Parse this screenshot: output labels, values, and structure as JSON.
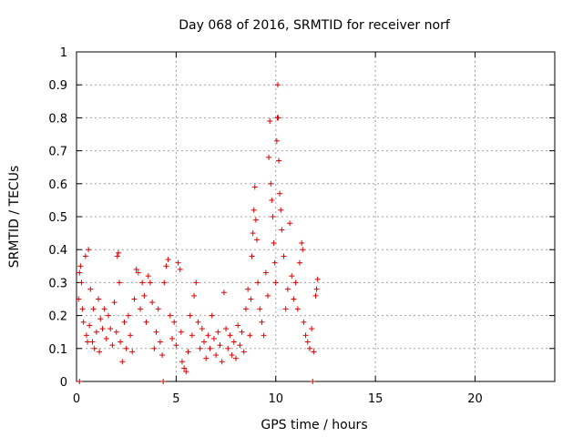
{
  "chart_data": {
    "type": "scatter",
    "title": "Day 068 of 2016, SRMTID for receiver norf",
    "xlabel": "GPS time / hours",
    "ylabel": "SRMTID / TECUs",
    "xlim": [
      0,
      24
    ],
    "ylim": [
      0,
      1
    ],
    "xticks": [
      "0",
      "5",
      "10",
      "15",
      "20"
    ],
    "yticks": [
      "0",
      "0.1",
      "0.2",
      "0.3",
      "0.4",
      "0.5",
      "0.6",
      "0.7",
      "0.8",
      "0.9",
      "1"
    ],
    "grid": true,
    "marker_color": "#e00000",
    "series": [
      {
        "name": "SRMTID",
        "points": [
          [
            0.15,
            0.0
          ],
          [
            0.1,
            0.25
          ],
          [
            0.15,
            0.33
          ],
          [
            0.2,
            0.35
          ],
          [
            0.25,
            0.3
          ],
          [
            0.3,
            0.22
          ],
          [
            0.35,
            0.18
          ],
          [
            0.45,
            0.38
          ],
          [
            0.5,
            0.14
          ],
          [
            0.55,
            0.12
          ],
          [
            0.6,
            0.4
          ],
          [
            0.65,
            0.17
          ],
          [
            0.7,
            0.28
          ],
          [
            0.8,
            0.12
          ],
          [
            0.85,
            0.22
          ],
          [
            0.9,
            0.1
          ],
          [
            1.0,
            0.15
          ],
          [
            1.1,
            0.25
          ],
          [
            1.15,
            0.09
          ],
          [
            1.2,
            0.19
          ],
          [
            1.3,
            0.16
          ],
          [
            1.4,
            0.22
          ],
          [
            1.5,
            0.13
          ],
          [
            1.6,
            0.2
          ],
          [
            1.7,
            0.16
          ],
          [
            1.8,
            0.11
          ],
          [
            1.9,
            0.24
          ],
          [
            2.0,
            0.15
          ],
          [
            2.05,
            0.38
          ],
          [
            2.1,
            0.39
          ],
          [
            2.15,
            0.3
          ],
          [
            2.2,
            0.12
          ],
          [
            2.3,
            0.06
          ],
          [
            2.4,
            0.18
          ],
          [
            2.5,
            0.1
          ],
          [
            2.6,
            0.2
          ],
          [
            2.7,
            0.14
          ],
          [
            2.8,
            0.09
          ],
          [
            2.9,
            0.25
          ],
          [
            3.0,
            0.34
          ],
          [
            3.1,
            0.33
          ],
          [
            3.2,
            0.22
          ],
          [
            3.3,
            0.3
          ],
          [
            3.4,
            0.26
          ],
          [
            3.5,
            0.18
          ],
          [
            3.6,
            0.32
          ],
          [
            3.7,
            0.3
          ],
          [
            3.8,
            0.24
          ],
          [
            3.9,
            0.1
          ],
          [
            4.0,
            0.15
          ],
          [
            4.1,
            0.22
          ],
          [
            4.2,
            0.12
          ],
          [
            4.3,
            0.08
          ],
          [
            4.35,
            0.0
          ],
          [
            4.4,
            0.3
          ],
          [
            4.5,
            0.35
          ],
          [
            4.6,
            0.37
          ],
          [
            4.7,
            0.2
          ],
          [
            4.8,
            0.13
          ],
          [
            4.9,
            0.18
          ],
          [
            5.0,
            0.11
          ],
          [
            5.1,
            0.36
          ],
          [
            5.2,
            0.34
          ],
          [
            5.25,
            0.15
          ],
          [
            5.3,
            0.06
          ],
          [
            5.4,
            0.04
          ],
          [
            5.5,
            0.03
          ],
          [
            5.6,
            0.09
          ],
          [
            5.7,
            0.2
          ],
          [
            5.8,
            0.14
          ],
          [
            5.9,
            0.26
          ],
          [
            6.0,
            0.3
          ],
          [
            6.1,
            0.18
          ],
          [
            6.2,
            0.1
          ],
          [
            6.3,
            0.16
          ],
          [
            6.4,
            0.12
          ],
          [
            6.5,
            0.07
          ],
          [
            6.6,
            0.14
          ],
          [
            6.7,
            0.1
          ],
          [
            6.8,
            0.2
          ],
          [
            6.9,
            0.13
          ],
          [
            7.0,
            0.08
          ],
          [
            7.1,
            0.15
          ],
          [
            7.2,
            0.11
          ],
          [
            7.3,
            0.06
          ],
          [
            7.4,
            0.27
          ],
          [
            7.5,
            0.16
          ],
          [
            7.6,
            0.1
          ],
          [
            7.7,
            0.14
          ],
          [
            7.8,
            0.08
          ],
          [
            7.9,
            0.12
          ],
          [
            8.0,
            0.07
          ],
          [
            8.1,
            0.17
          ],
          [
            8.2,
            0.11
          ],
          [
            8.3,
            0.15
          ],
          [
            8.4,
            0.09
          ],
          [
            8.5,
            0.22
          ],
          [
            8.6,
            0.28
          ],
          [
            8.7,
            0.14
          ],
          [
            8.75,
            0.25
          ],
          [
            8.8,
            0.38
          ],
          [
            8.85,
            0.45
          ],
          [
            8.9,
            0.52
          ],
          [
            8.95,
            0.59
          ],
          [
            9.0,
            0.49
          ],
          [
            9.05,
            0.43
          ],
          [
            9.1,
            0.3
          ],
          [
            9.2,
            0.22
          ],
          [
            9.3,
            0.18
          ],
          [
            9.4,
            0.14
          ],
          [
            9.5,
            0.33
          ],
          [
            9.6,
            0.26
          ],
          [
            9.65,
            0.68
          ],
          [
            9.7,
            0.79
          ],
          [
            9.75,
            0.6
          ],
          [
            9.8,
            0.55
          ],
          [
            9.85,
            0.5
          ],
          [
            9.9,
            0.42
          ],
          [
            9.95,
            0.36
          ],
          [
            10.0,
            0.3
          ],
          [
            10.05,
            0.73
          ],
          [
            10.08,
            0.8
          ],
          [
            10.1,
            0.9
          ],
          [
            10.12,
            0.8
          ],
          [
            10.15,
            0.67
          ],
          [
            10.2,
            0.57
          ],
          [
            10.25,
            0.52
          ],
          [
            10.3,
            0.46
          ],
          [
            10.4,
            0.38
          ],
          [
            10.5,
            0.22
          ],
          [
            10.6,
            0.28
          ],
          [
            10.7,
            0.48
          ],
          [
            10.8,
            0.32
          ],
          [
            10.9,
            0.25
          ],
          [
            11.0,
            0.3
          ],
          [
            11.1,
            0.22
          ],
          [
            11.2,
            0.36
          ],
          [
            11.3,
            0.42
          ],
          [
            11.35,
            0.4
          ],
          [
            11.4,
            0.18
          ],
          [
            11.5,
            0.14
          ],
          [
            11.6,
            0.12
          ],
          [
            11.7,
            0.1
          ],
          [
            11.8,
            0.16
          ],
          [
            11.85,
            0.0
          ],
          [
            11.9,
            0.09
          ],
          [
            12.0,
            0.26
          ],
          [
            12.05,
            0.28
          ],
          [
            12.1,
            0.31
          ]
        ]
      }
    ]
  }
}
